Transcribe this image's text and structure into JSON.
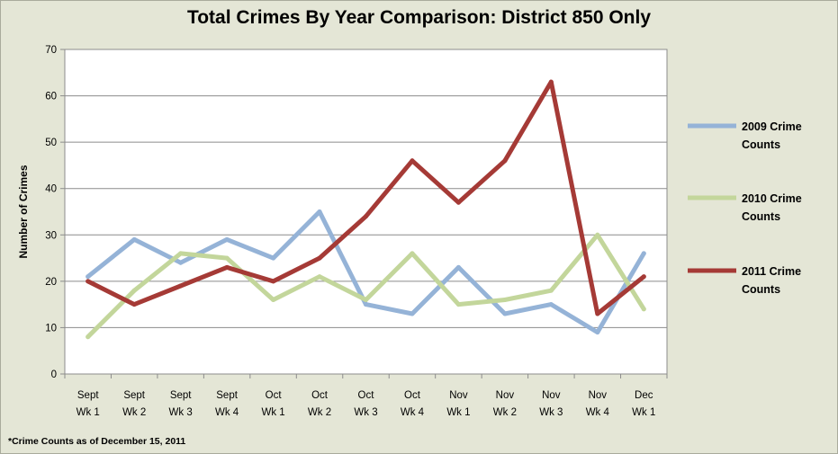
{
  "title": "Total Crimes By Year Comparison: District 850 Only",
  "footnote": "*Crime Counts as of December 15, 2011",
  "chart_data": {
    "type": "line",
    "title": "Total Crimes By Year Comparison: District 850 Only",
    "xlabel": "",
    "ylabel": "Number of Crimes",
    "ylim": [
      0,
      70
    ],
    "yticks": [
      0,
      10,
      20,
      30,
      40,
      50,
      60,
      70
    ],
    "grid": true,
    "legend_position": "right",
    "categories": [
      [
        "Sept",
        "Wk 1"
      ],
      [
        "Sept",
        "Wk 2"
      ],
      [
        "Sept",
        "Wk 3"
      ],
      [
        "Sept",
        "Wk 4"
      ],
      [
        "Oct",
        "Wk 1"
      ],
      [
        "Oct",
        "Wk 2"
      ],
      [
        "Oct",
        "Wk 3"
      ],
      [
        "Oct",
        "Wk 4"
      ],
      [
        "Nov",
        "Wk 1"
      ],
      [
        "Nov",
        "Wk 2"
      ],
      [
        "Nov",
        "Wk 3"
      ],
      [
        "Nov",
        "Wk 4"
      ],
      [
        "Dec",
        "Wk 1"
      ]
    ],
    "series": [
      {
        "name": [
          "2009 Crime",
          "Counts"
        ],
        "color": "#95b3d7",
        "values": [
          21,
          29,
          24,
          29,
          25,
          35,
          15,
          13,
          23,
          13,
          15,
          9,
          26
        ]
      },
      {
        "name": [
          "2010 Crime",
          "Counts"
        ],
        "color": "#c3d69b",
        "values": [
          8,
          18,
          26,
          25,
          16,
          21,
          16,
          26,
          15,
          16,
          18,
          30,
          14
        ]
      },
      {
        "name": [
          "2011 Crime",
          "Counts"
        ],
        "color": "#a53a36",
        "values": [
          20,
          15,
          19,
          23,
          20,
          25,
          34,
          46,
          37,
          46,
          63,
          13,
          21
        ]
      }
    ]
  }
}
